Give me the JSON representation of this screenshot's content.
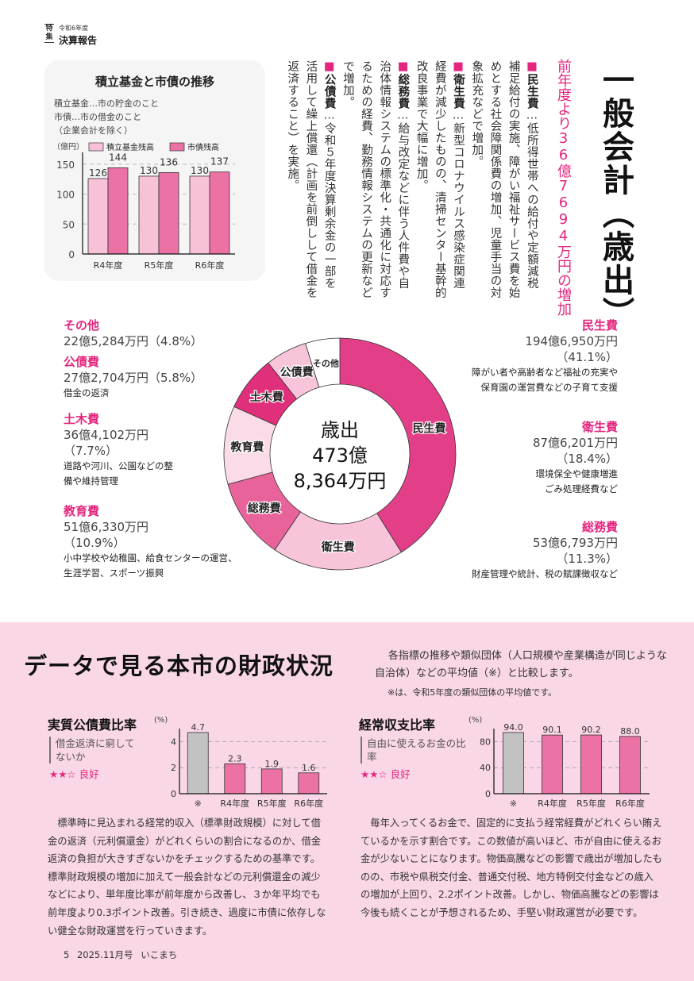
{
  "header": {
    "tag": "特集",
    "year": "令和6年度",
    "title": "決算報告"
  },
  "fund_box": {
    "title": "積立基金と市債の推移",
    "notes": [
      "積立基金…市の貯金のこと",
      "市債…市の借金のこと",
      "（企業会計を除く）"
    ]
  },
  "general_account": {
    "title": "一般会計（歳出）",
    "subtitle": "前年度より36億7694万円の増加",
    "items": [
      {
        "head": "民生費",
        "text": "…低所得世帯への給付や定額減税補足給付の実施、障がい福祉サービス費を始めとする社会障関係費の増加、児童手当の対象拡充などで増加。"
      },
      {
        "head": "衛生費",
        "text": "…新型コロナウイルス感染症関連経費が減少したものの、清掃センター基幹的改良事業で大幅に増加。"
      },
      {
        "head": "総務費",
        "text": "…給与改定などに伴う人件費や自治体情報システムの標準化・共通化に対応するための経費、勤務情報システムの更新などで増加。"
      },
      {
        "head": "公債費",
        "text": "…令和５年度決算剰余金の一部を活用して繰上償還（計画を前倒しして借金を返済すること）を実施。"
      }
    ]
  },
  "donut": {
    "center_lines": [
      "歳出",
      "473億",
      "8,364万円"
    ],
    "left_labels": [
      {
        "name": "その他",
        "amount": "22億5,284万円（4.8%）",
        "desc": []
      },
      {
        "name": "公債費",
        "amount": "27億2,704万円（5.8%）",
        "desc": [
          "借金の返済"
        ]
      },
      {
        "name": "土木費",
        "amount": "36億4,102万円",
        "pct": "（7.7%）",
        "desc": [
          "道路や河川、公園などの整",
          "備や維持管理"
        ]
      },
      {
        "name": "教育費",
        "amount": "51億6,330万円",
        "pct": "（10.9%）",
        "desc": [
          "小中学校や幼稚園、給食センターの運営、",
          "生涯学習、スポーツ振興"
        ]
      }
    ],
    "right_labels": [
      {
        "name": "民生費",
        "amount": "194億6,950万円",
        "pct": "（41.1%）",
        "desc": [
          "障がい者や高齢者など福祉の充実や",
          "保育園の運営費などの子育て支援"
        ]
      },
      {
        "name": "衛生費",
        "amount": "87億6,201万円",
        "pct": "（18.4%）",
        "desc": [
          "環境保全や健康増進",
          "ごみ処理経費など"
        ]
      },
      {
        "name": "総務費",
        "amount": "53億6,793万円",
        "pct": "（11.3%）",
        "desc": [
          "財産管理や統計、税の賦課徴収など"
        ]
      }
    ]
  },
  "data_section": {
    "title": "データで見る本市の財政状況",
    "intro": "各指標の推移や類似団体（人口規模や産業構造が同じような自治体）などの平均値（※）と比較します。",
    "note": "※は、令和5年度の類似団体の平均値です。",
    "indicators": [
      {
        "title": "実質公債費比率",
        "desc": "借金返済に窮してないか",
        "stars": "★★☆",
        "rating": "良好",
        "paragraph": "標準時に見込まれる経常的収入（標準財政規模）に対して借金の返済（元利償還金）がどれくらいの割合になるのか、借金返済の負担が大きすぎないかをチェックするための基準です。標準財政規模の増加に加えて一般会計などの元利償還金の減少などにより、単年度比率が前年度から改善し、３か年平均でも前年度より0.3ポイント改善。引き続き、過度に市債に依存しない健全な財政運営を行っていきます。"
      },
      {
        "title": "経常収支比率",
        "desc": "自由に使えるお金の比率",
        "stars": "★★☆",
        "rating": "良好",
        "paragraph": "毎年入ってくるお金で、固定的に支払う経常経費がどれくらい賄えているかを示す割合です。この数値が高いほど、市が自由に使えるお金が少ないことになります。物価高騰などの影響で歳出が増加したものの、市税や県税交付金、普通交付税、地方特例交付金などの歳入の増加が上回り、2.2ポイント改善。しかし、物価高騰などの影響は今後も続くことが予想されるため、手堅い財政運営が必要です。"
      }
    ]
  },
  "footer": {
    "page": "5",
    "issue": "2025.11月号",
    "publication": "いこまち"
  },
  "colors": {
    "accent": "#e4267f",
    "dark_pink": "#e84a8c",
    "mid_pink": "#ee78a8",
    "light_pink": "#f7c4d9",
    "pale_pink": "#fadbe7",
    "gray_bar": "#c0c0c0",
    "section_bg": "#f9d7e6"
  },
  "chart_data": [
    {
      "type": "bar",
      "title": "積立基金と市債の推移",
      "ylabel": "（億円）",
      "categories": [
        "R4年度",
        "R5年度",
        "R6年度"
      ],
      "series": [
        {
          "name": "積立基金残高",
          "values": [
            126,
            130,
            130
          ],
          "color": "#f7c2d8"
        },
        {
          "name": "市債残高",
          "values": [
            144,
            136,
            137
          ],
          "color": "#ec72a6"
        }
      ],
      "ylim": [
        0,
        175
      ],
      "yticks": [
        0,
        50,
        100,
        150
      ],
      "grid": true,
      "legend": "top"
    },
    {
      "type": "pie",
      "title": "歳出 473億8,364万円",
      "categories": [
        "民生費",
        "衛生費",
        "総務費",
        "教育費",
        "土木費",
        "公債費",
        "その他"
      ],
      "values": [
        41.1,
        18.4,
        11.3,
        10.9,
        7.7,
        5.8,
        4.8
      ],
      "colors": [
        "#e33f88",
        "#f7c4d9",
        "#e8639a",
        "#fadbe7",
        "#e0307c",
        "#f7c4d9",
        "#ffffff"
      ]
    },
    {
      "type": "bar",
      "title": "実質公債費比率",
      "ylabel": "(%)",
      "categories": [
        "※",
        "R4年度",
        "R5年度",
        "R6年度"
      ],
      "values": [
        4.7,
        2.3,
        1.9,
        1.6
      ],
      "ylim": [
        0,
        5
      ],
      "yticks": [
        0,
        2,
        4
      ],
      "grid": true
    },
    {
      "type": "bar",
      "title": "経常収支比率",
      "ylabel": "(%)",
      "categories": [
        "※",
        "R4年度",
        "R5年度",
        "R6年度"
      ],
      "values": [
        94.0,
        90.1,
        90.2,
        88.0
      ],
      "ylim": [
        0,
        100
      ],
      "yticks": [
        0,
        40,
        80
      ],
      "grid": true
    }
  ]
}
